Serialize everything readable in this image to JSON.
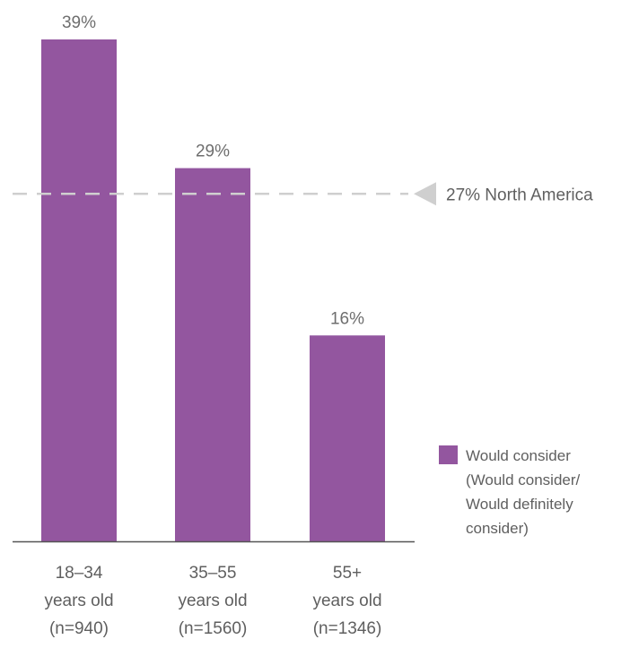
{
  "chart_data": {
    "type": "bar",
    "title": "",
    "xlabel": "",
    "ylabel": "",
    "ylim": [
      0,
      39
    ],
    "grid": false,
    "legend_position": "right",
    "categories": [
      [
        "18–34",
        "years old",
        "(n=940)"
      ],
      [
        "35–55",
        "years old",
        "(n=1560)"
      ],
      [
        "55+",
        "years old",
        "(n=1346)"
      ]
    ],
    "series": [
      {
        "name": [
          "Would consider",
          "(Would consider/",
          "Would definitely",
          "consider)"
        ],
        "values": [
          39,
          29,
          16
        ],
        "value_labels": [
          "39%",
          "29%",
          "16%"
        ],
        "color": "#93569f"
      }
    ],
    "reference_line": {
      "value": 27,
      "label": "27% North America",
      "color": "#cfcfcf",
      "style": "dashed"
    },
    "axis_color": "#555555"
  }
}
